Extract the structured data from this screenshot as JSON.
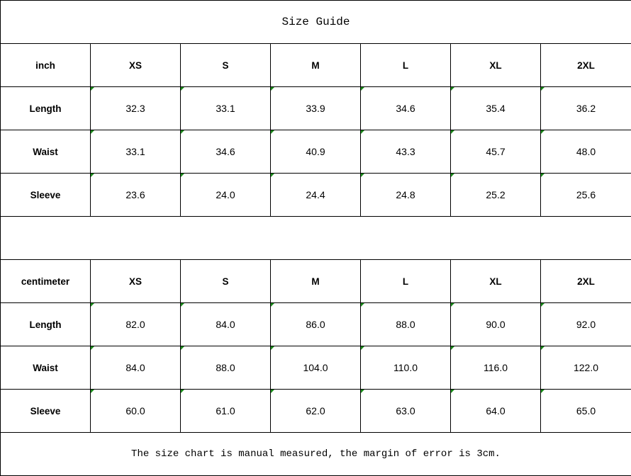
{
  "title": "Size Guide",
  "sizes": [
    "XS",
    "S",
    "M",
    "L",
    "XL",
    "2XL"
  ],
  "inch": {
    "unit_label": "inch",
    "rows": [
      {
        "label": "Length",
        "values": [
          "32.3",
          "33.1",
          "33.9",
          "34.6",
          "35.4",
          "36.2"
        ]
      },
      {
        "label": "Waist",
        "values": [
          "33.1",
          "34.6",
          "40.9",
          "43.3",
          "45.7",
          "48.0"
        ]
      },
      {
        "label": "Sleeve",
        "values": [
          "23.6",
          "24.0",
          "24.4",
          "24.8",
          "25.2",
          "25.6"
        ]
      }
    ]
  },
  "centimeter": {
    "unit_label": "centimeter",
    "rows": [
      {
        "label": "Length",
        "values": [
          "82.0",
          "84.0",
          "86.0",
          "88.0",
          "90.0",
          "92.0"
        ]
      },
      {
        "label": "Waist",
        "values": [
          "84.0",
          "88.0",
          "104.0",
          "110.0",
          "116.0",
          "122.0"
        ]
      },
      {
        "label": "Sleeve",
        "values": [
          "60.0",
          "61.0",
          "62.0",
          "63.0",
          "64.0",
          "65.0"
        ]
      }
    ]
  },
  "note": "The size chart is manual measured, the margin of error is 3cm.",
  "colors": {
    "cell_marker": "#1a8a1a",
    "border": "#000000"
  }
}
